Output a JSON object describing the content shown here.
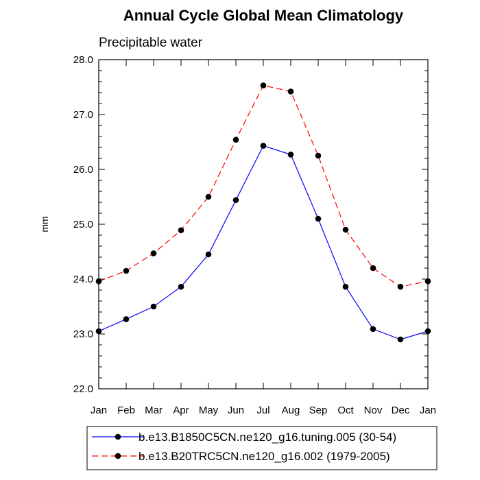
{
  "chart_data": {
    "type": "line",
    "title": "Annual Cycle Global Mean Climatology",
    "subtitle": "Precipitable water",
    "ylabel": "mm",
    "xlabel": "",
    "categories": [
      "Jan",
      "Feb",
      "Mar",
      "Apr",
      "May",
      "Jun",
      "Jul",
      "Aug",
      "Sep",
      "Oct",
      "Nov",
      "Dec",
      "Jan"
    ],
    "ylim": [
      22.0,
      28.0
    ],
    "yticks": [
      "22.0",
      "23.0",
      "24.0",
      "25.0",
      "26.0",
      "27.0",
      "28.0"
    ],
    "grid": false,
    "legend_position": "bottom",
    "series": [
      {
        "name": "b.e13.B1850C5CN.ne120_g16.tuning.005 (30-54)",
        "color": "#0000ff",
        "dash": "solid",
        "values": [
          23.05,
          23.27,
          23.5,
          23.86,
          24.45,
          25.44,
          26.43,
          26.27,
          25.1,
          23.86,
          23.09,
          22.9,
          23.05
        ]
      },
      {
        "name": "b.e13.B20TRC5CN.ne120_g16.002 (1979-2005)",
        "color": "#ff0000",
        "dash": "dashed",
        "values": [
          23.96,
          24.15,
          24.47,
          24.89,
          25.5,
          26.54,
          27.53,
          27.42,
          26.25,
          24.9,
          24.2,
          23.86,
          23.96
        ]
      }
    ]
  }
}
